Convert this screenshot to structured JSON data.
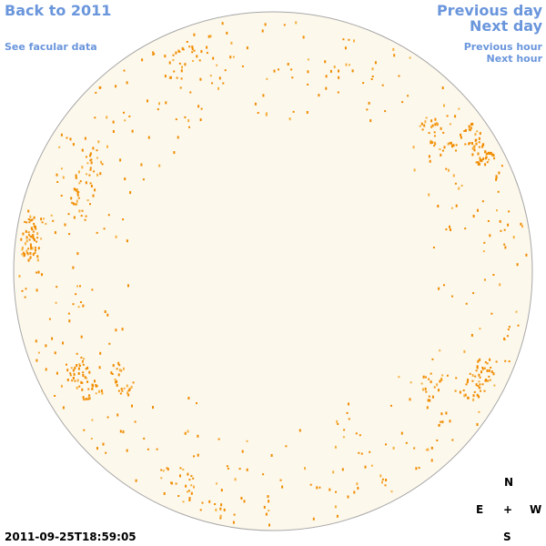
{
  "navigation": {
    "back": "Back to 2011",
    "facular_data": "See facular data",
    "previous_day": "Previous day",
    "next_day": "Next day",
    "previous_hour": "Previous hour",
    "next_hour": "Next hour"
  },
  "compass": {
    "north": "N",
    "east": "E",
    "center": "+",
    "west": "W",
    "south": "S"
  },
  "timestamp": "2011-09-25T18:59:05"
}
